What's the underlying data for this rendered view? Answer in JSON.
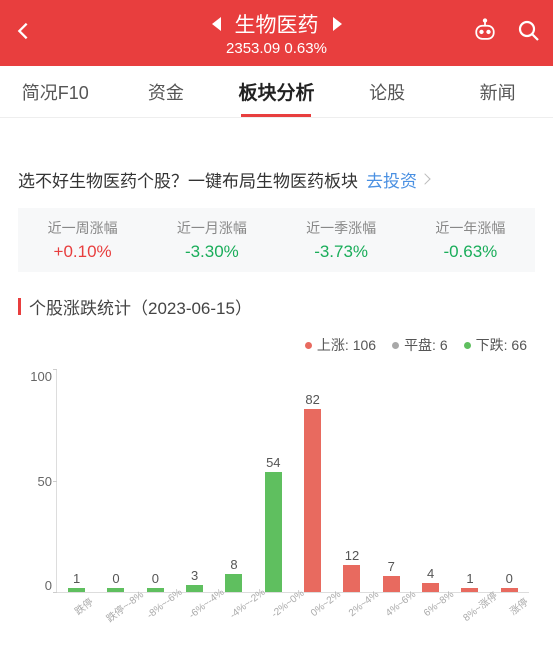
{
  "header": {
    "title": "生物医药",
    "price": "2353.09",
    "change": "0.63%"
  },
  "tabs": [
    "简况F10",
    "资金",
    "板块分析",
    "论股",
    "新闻"
  ],
  "active_tab": 2,
  "promo": {
    "text": "选不好生物医药个股？一键布局生物医药板块",
    "link": "去投资"
  },
  "stats": [
    {
      "label": "近一周涨幅",
      "value": "+0.10%",
      "color": "#e83e3e"
    },
    {
      "label": "近一月涨幅",
      "value": "-3.30%",
      "color": "#1aad5a"
    },
    {
      "label": "近一季涨幅",
      "value": "-3.73%",
      "color": "#1aad5a"
    },
    {
      "label": "近一年涨幅",
      "value": "-0.63%",
      "color": "#1aad5a"
    }
  ],
  "section_title": "个股涨跌统计（2023-06-15）",
  "legend": [
    {
      "label": "上涨",
      "value": 106,
      "color": "#e86a5f"
    },
    {
      "label": "平盘",
      "value": 6,
      "color": "#a8a8a8"
    },
    {
      "label": "下跌",
      "value": 66,
      "color": "#5fbf5f"
    }
  ],
  "chart": {
    "ymax": 100,
    "yticks": [
      100,
      50,
      0
    ],
    "categories": [
      "跌停",
      "跌停~-8%",
      "-8%~-6%",
      "-6%~-4%",
      "-4%~-2%",
      "-2%~0%",
      "0%~2%",
      "2%~4%",
      "4%~6%",
      "6%~8%",
      "8%~涨停",
      "涨停"
    ],
    "values": [
      1,
      0,
      0,
      3,
      8,
      54,
      82,
      12,
      7,
      4,
      1,
      0
    ],
    "colors": [
      "#5fbf5f",
      "#5fbf5f",
      "#5fbf5f",
      "#5fbf5f",
      "#5fbf5f",
      "#5fbf5f",
      "#e86a5f",
      "#e86a5f",
      "#e86a5f",
      "#e86a5f",
      "#e86a5f",
      "#e86a5f"
    ]
  }
}
